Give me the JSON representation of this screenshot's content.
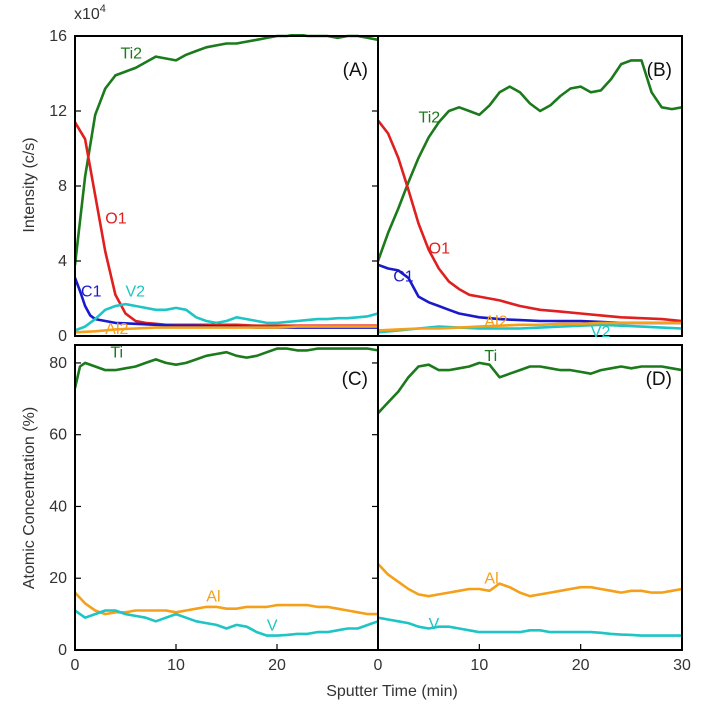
{
  "figure": {
    "exponent_label": "x10",
    "exponent_power": "4",
    "top_ylabel": "Intensity (c/s)",
    "bottom_ylabel": "Atomic Concentration (%)",
    "xlabel": "Sputter Time (min)"
  },
  "colors": {
    "Ti2": "#1b7a1b",
    "Ti": "#1b7a1b",
    "O1": "#e02020",
    "C1": "#1a1acc",
    "V2": "#1fc4c4",
    "V": "#1fc4c4",
    "Al2": "#f5a01a",
    "Al": "#f5a01a"
  },
  "chart_data": [
    {
      "panel": "(A)",
      "type": "line",
      "xlim": [
        0,
        30
      ],
      "ylim": [
        0,
        160000
      ],
      "yticks": [
        0,
        40000,
        80000,
        120000,
        160000
      ],
      "ytick_labels": [
        "0",
        "4",
        "8",
        "12",
        "16"
      ],
      "series": [
        {
          "name": "Ti2",
          "x": [
            0,
            1,
            2,
            3,
            4,
            5,
            6,
            7,
            8,
            9,
            10,
            11,
            12,
            13,
            14,
            15,
            16,
            17,
            18,
            19,
            20,
            21,
            22,
            23,
            24,
            25,
            26,
            27,
            28,
            29,
            30
          ],
          "y": [
            38000,
            85000,
            118000,
            132000,
            139000,
            141000,
            143000,
            146000,
            149000,
            148000,
            147000,
            150000,
            152000,
            154000,
            155000,
            156000,
            156000,
            157000,
            158000,
            159000,
            160000,
            160000,
            161000,
            160000,
            160000,
            160000,
            159000,
            160000,
            160000,
            159000,
            158000
          ]
        },
        {
          "name": "O1",
          "x": [
            0,
            1,
            2,
            3,
            4,
            5,
            6,
            7,
            8,
            9,
            10,
            12,
            14,
            16,
            18,
            20,
            22,
            24,
            26,
            28,
            30
          ],
          "y": [
            114000,
            105000,
            75000,
            45000,
            22000,
            12000,
            8000,
            7000,
            6500,
            6000,
            6000,
            6000,
            6000,
            6000,
            5500,
            5500,
            5500,
            5500,
            5500,
            5500,
            5500
          ]
        },
        {
          "name": "C1",
          "x": [
            0,
            0.5,
            1,
            1.5,
            2,
            3,
            4,
            6,
            8,
            10,
            12,
            14,
            16,
            18,
            20,
            22,
            24,
            26,
            28,
            30
          ],
          "y": [
            31000,
            24000,
            16000,
            11000,
            9000,
            8000,
            7000,
            6500,
            6000,
            5500,
            5500,
            5000,
            5000,
            4500,
            4500,
            4500,
            4500,
            4500,
            4500,
            4500
          ]
        },
        {
          "name": "V2",
          "x": [
            0,
            1,
            2,
            3,
            4,
            5,
            6,
            7,
            8,
            9,
            10,
            11,
            12,
            13,
            14,
            15,
            16,
            17,
            18,
            19,
            20,
            21,
            22,
            23,
            24,
            25,
            26,
            27,
            28,
            29,
            30
          ],
          "y": [
            3000,
            5000,
            9000,
            14000,
            16000,
            17000,
            16000,
            15000,
            14000,
            14000,
            15000,
            14000,
            10000,
            8000,
            7000,
            8000,
            10000,
            9000,
            8000,
            7000,
            7000,
            7500,
            8000,
            8500,
            9000,
            9000,
            9500,
            9500,
            10000,
            10500,
            12000
          ]
        },
        {
          "name": "Al2",
          "x": [
            0,
            2,
            4,
            6,
            8,
            10,
            12,
            14,
            16,
            18,
            20,
            22,
            24,
            26,
            28,
            30
          ],
          "y": [
            2000,
            2500,
            3500,
            4000,
            4500,
            4500,
            4500,
            4500,
            4500,
            4500,
            4500,
            5000,
            5000,
            5000,
            5000,
            5000
          ]
        }
      ],
      "labels": [
        {
          "series": "Ti2",
          "text": "Ti2",
          "x": 4.5,
          "y": 148000
        },
        {
          "series": "O1",
          "text": "O1",
          "x": 3.0,
          "y": 60000
        },
        {
          "series": "C1",
          "text": "C1",
          "x": 0.6,
          "y": 21000
        },
        {
          "series": "V2",
          "text": "V2",
          "x": 5.0,
          "y": 21000
        },
        {
          "series": "Al2",
          "text": "Al2",
          "x": 3.0,
          "y": 1000
        }
      ]
    },
    {
      "panel": "(B)",
      "type": "line",
      "xlim": [
        0,
        30
      ],
      "ylim": [
        0,
        160000
      ],
      "series": [
        {
          "name": "Ti2",
          "x": [
            0,
            1,
            2,
            3,
            4,
            5,
            6,
            7,
            8,
            9,
            10,
            11,
            12,
            13,
            14,
            15,
            16,
            17,
            18,
            19,
            20,
            21,
            22,
            23,
            24,
            25,
            26,
            27,
            28,
            29,
            30
          ],
          "y": [
            40000,
            55000,
            68000,
            82000,
            95000,
            106000,
            114000,
            120000,
            122000,
            120000,
            118000,
            123000,
            130000,
            133000,
            130000,
            124000,
            120000,
            123000,
            128000,
            132000,
            133000,
            130000,
            131000,
            137000,
            145000,
            147000,
            147000,
            130000,
            122000,
            121000,
            122000
          ]
        },
        {
          "name": "O1",
          "x": [
            0,
            1,
            2,
            3,
            4,
            5,
            6,
            7,
            8,
            9,
            10,
            11,
            12,
            14,
            16,
            18,
            20,
            22,
            24,
            26,
            28,
            30
          ],
          "y": [
            115000,
            108000,
            95000,
            78000,
            60000,
            46000,
            36000,
            29000,
            25000,
            22000,
            21000,
            20000,
            19000,
            16000,
            14000,
            13000,
            12000,
            11000,
            10000,
            9500,
            9000,
            8000
          ]
        },
        {
          "name": "C1",
          "x": [
            0,
            1,
            2,
            3,
            4,
            5,
            6,
            7,
            8,
            10,
            12,
            14,
            16,
            18,
            20,
            22,
            24,
            26,
            28,
            30
          ],
          "y": [
            38000,
            36000,
            35000,
            31000,
            21000,
            18000,
            16000,
            14000,
            12000,
            10000,
            9000,
            8500,
            8000,
            8000,
            8000,
            7500,
            7000,
            7000,
            7000,
            7000
          ]
        },
        {
          "name": "V2",
          "x": [
            0,
            2,
            4,
            6,
            8,
            10,
            12,
            14,
            16,
            18,
            20,
            22,
            24,
            26,
            28,
            30
          ],
          "y": [
            2000,
            3000,
            4000,
            5000,
            4500,
            4000,
            4000,
            4000,
            4500,
            5000,
            5500,
            6000,
            5500,
            5000,
            4500,
            4000
          ]
        },
        {
          "name": "Al2",
          "x": [
            0,
            2,
            4,
            6,
            8,
            10,
            12,
            14,
            16,
            18,
            20,
            22,
            24,
            26,
            28,
            30
          ],
          "y": [
            3000,
            3500,
            4000,
            4000,
            4500,
            5000,
            5500,
            6000,
            6000,
            6500,
            6500,
            7000,
            7000,
            7000,
            7000,
            7000
          ]
        }
      ],
      "labels": [
        {
          "series": "Ti2",
          "text": "Ti2",
          "x": 4.0,
          "y": 114000
        },
        {
          "series": "O1",
          "text": "O1",
          "x": 5.0,
          "y": 44000
        },
        {
          "series": "C1",
          "text": "C1",
          "x": 1.5,
          "y": 29000
        },
        {
          "series": "Al2",
          "text": "Al2",
          "x": 10.5,
          "y": 5000
        },
        {
          "series": "V2",
          "text": "V2",
          "x": 21.0,
          "y": -500
        }
      ]
    },
    {
      "panel": "(C)",
      "type": "line",
      "xlim": [
        0,
        30
      ],
      "ylim": [
        0,
        85
      ],
      "yticks": [
        0,
        20,
        40,
        60,
        80
      ],
      "ytick_labels": [
        "0",
        "20",
        "40",
        "60",
        "80"
      ],
      "xticks": [
        0,
        10,
        20
      ],
      "xtick_labels": [
        "0",
        "10",
        "20"
      ],
      "series": [
        {
          "name": "Ti",
          "x": [
            0,
            0.5,
            1,
            2,
            3,
            4,
            5,
            6,
            7,
            8,
            9,
            10,
            11,
            12,
            13,
            14,
            15,
            16,
            17,
            18,
            19,
            20,
            21,
            22,
            23,
            24,
            25,
            26,
            27,
            28,
            29,
            30
          ],
          "y": [
            73,
            79,
            80,
            79,
            78,
            78,
            78.5,
            79,
            80,
            81,
            80,
            79.5,
            80,
            81,
            82,
            82.5,
            83,
            82,
            81.5,
            82,
            83,
            84,
            84,
            83.5,
            83.5,
            84,
            84,
            84,
            84,
            84,
            84,
            83.5
          ]
        },
        {
          "name": "Al",
          "x": [
            0,
            1,
            2,
            3,
            4,
            5,
            6,
            7,
            8,
            9,
            10,
            11,
            12,
            13,
            14,
            15,
            16,
            17,
            18,
            19,
            20,
            21,
            22,
            23,
            24,
            25,
            26,
            27,
            28,
            29,
            30
          ],
          "y": [
            16,
            13,
            11,
            10,
            10.5,
            10.5,
            11,
            11,
            11,
            11,
            10.5,
            11,
            11.5,
            12,
            12,
            11.5,
            11.5,
            12,
            12,
            12,
            12.5,
            12.5,
            12.5,
            12.5,
            12,
            12,
            11.5,
            11,
            10.5,
            10,
            10
          ]
        },
        {
          "name": "V",
          "x": [
            0,
            1,
            2,
            3,
            4,
            5,
            6,
            7,
            8,
            9,
            10,
            11,
            12,
            13,
            14,
            15,
            16,
            17,
            18,
            19,
            20,
            21,
            22,
            23,
            24,
            25,
            26,
            27,
            28,
            29,
            30
          ],
          "y": [
            11,
            9,
            10,
            11,
            11,
            10,
            9.5,
            9,
            8,
            9,
            10,
            9,
            8,
            7.5,
            7,
            6,
            7,
            6.5,
            5,
            4,
            4,
            4.2,
            4.5,
            4.5,
            5,
            5,
            5.5,
            6,
            6,
            7,
            8
          ]
        }
      ],
      "labels": [
        {
          "series": "Ti",
          "text": "Ti",
          "x": 3.5,
          "y": 81.5
        },
        {
          "series": "Al",
          "text": "Al",
          "x": 13,
          "y": 13.5
        },
        {
          "series": "V",
          "text": "V",
          "x": 19.0,
          "y": 5.5
        }
      ]
    },
    {
      "panel": "(D)",
      "type": "line",
      "xlim": [
        0,
        30
      ],
      "ylim": [
        0,
        85
      ],
      "xticks": [
        0,
        10,
        20,
        30
      ],
      "xtick_labels": [
        "0",
        "10",
        "20",
        "30"
      ],
      "series": [
        {
          "name": "Ti",
          "x": [
            0,
            1,
            2,
            3,
            4,
            5,
            6,
            7,
            8,
            9,
            10,
            11,
            12,
            13,
            14,
            15,
            16,
            17,
            18,
            19,
            20,
            21,
            22,
            23,
            24,
            25,
            26,
            27,
            28,
            29,
            30
          ],
          "y": [
            66,
            69,
            72,
            76,
            79,
            79.5,
            78,
            78,
            78.5,
            79,
            80,
            79.5,
            76,
            77,
            78,
            79,
            79,
            78.5,
            78,
            78,
            77.5,
            77,
            78,
            78.5,
            79,
            78.5,
            79,
            79,
            79,
            78.5,
            78
          ]
        },
        {
          "name": "Al",
          "x": [
            0,
            1,
            2,
            3,
            4,
            5,
            6,
            7,
            8,
            9,
            10,
            11,
            12,
            13,
            14,
            15,
            16,
            17,
            18,
            19,
            20,
            21,
            22,
            23,
            24,
            25,
            26,
            27,
            28,
            29,
            30
          ],
          "y": [
            24,
            21,
            19,
            17,
            15.5,
            15,
            15.5,
            16,
            16.5,
            17,
            17,
            16.5,
            18.5,
            17.5,
            16,
            15,
            15.5,
            16,
            16.5,
            17,
            17.5,
            17.5,
            17,
            16.5,
            16,
            16.5,
            16.5,
            16,
            16,
            16.5,
            17
          ]
        },
        {
          "name": "V",
          "x": [
            0,
            1,
            2,
            3,
            4,
            5,
            6,
            7,
            8,
            9,
            10,
            11,
            12,
            13,
            14,
            15,
            16,
            17,
            18,
            19,
            20,
            21,
            22,
            23,
            24,
            25,
            26,
            27,
            28,
            29,
            30
          ],
          "y": [
            9,
            8.5,
            8,
            7.5,
            6.5,
            6,
            6.5,
            6.5,
            6,
            5.5,
            5,
            5,
            5,
            5,
            5,
            5.5,
            5.5,
            5,
            5,
            5,
            5,
            5,
            4.8,
            4.5,
            4.3,
            4.2,
            4,
            4,
            4,
            4,
            4
          ]
        }
      ],
      "labels": [
        {
          "series": "Ti",
          "text": "Ti",
          "x": 10.5,
          "y": 80.5
        },
        {
          "series": "Al",
          "text": "Al",
          "x": 10.5,
          "y": 18.5
        },
        {
          "series": "V",
          "text": "V",
          "x": 5.0,
          "y": 5.8
        }
      ]
    }
  ]
}
